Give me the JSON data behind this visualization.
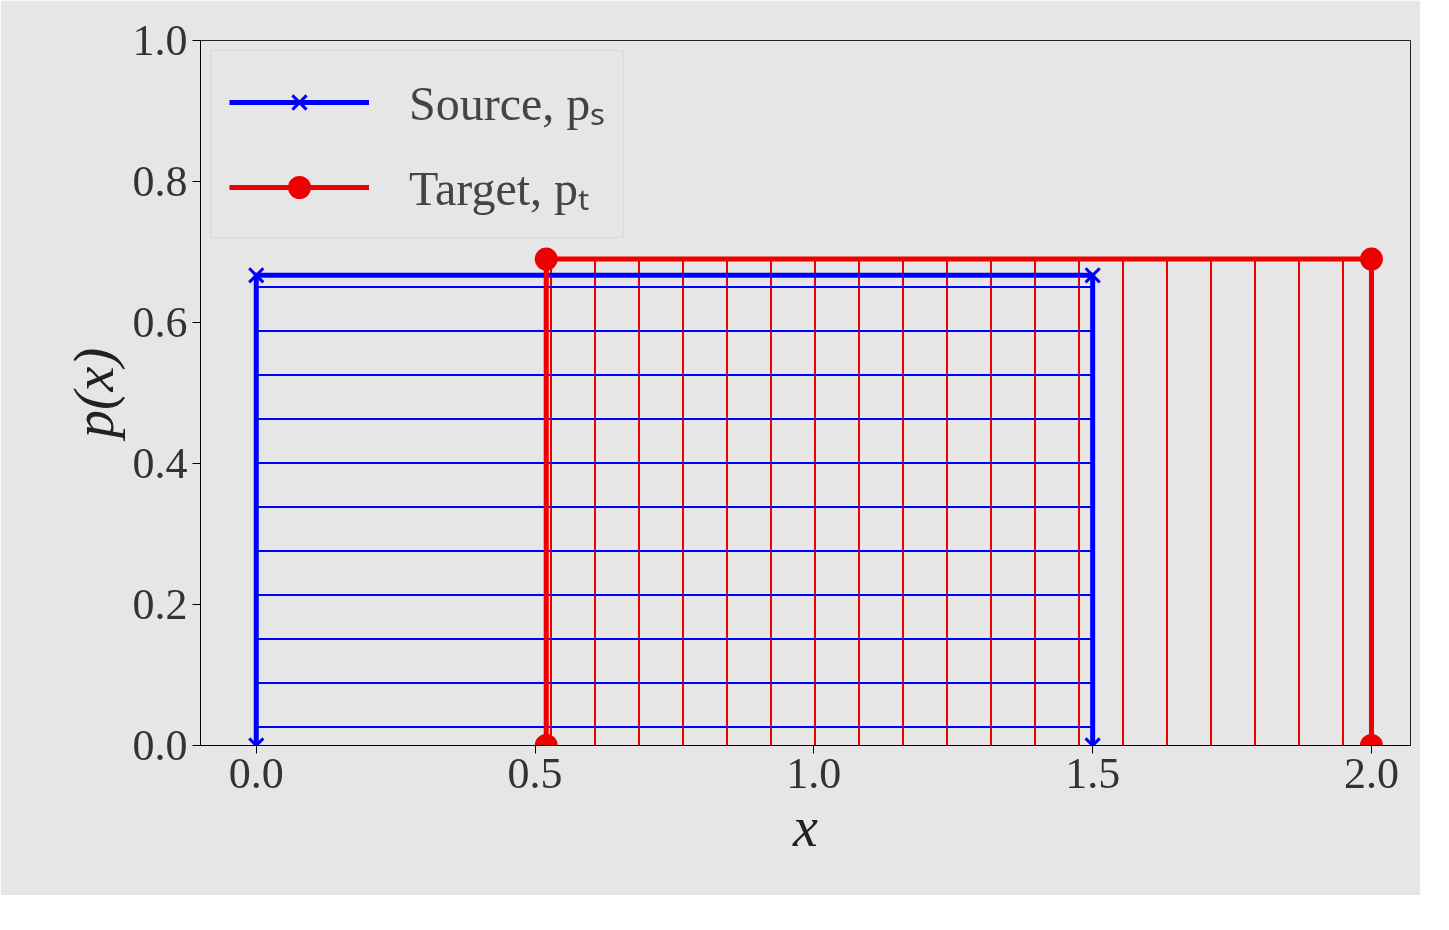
{
  "chart_data": {
    "type": "area",
    "xlabel": "x",
    "ylabel": "p(x)",
    "series": [
      {
        "name": "Source, pₛ",
        "color": "#0000ff",
        "marker": "cross",
        "x": [
          0,
          0,
          1.5,
          1.5
        ],
        "values": [
          0,
          0.667,
          0.667,
          0
        ]
      },
      {
        "name": "Target, pₜ",
        "color": "#ee0000",
        "marker": "circle",
        "x": [
          0.52,
          0.52,
          2.0,
          2.0
        ],
        "values": [
          0,
          0.69,
          0.69,
          0
        ]
      }
    ],
    "xlim": [
      -0.1,
      2.07
    ],
    "ylim": [
      0,
      1.0
    ],
    "xticks": [
      {
        "value": 0,
        "label": "0.0"
      },
      {
        "value": 0.5,
        "label": "0.5"
      },
      {
        "value": 1.0,
        "label": "1.0"
      },
      {
        "value": 1.5,
        "label": "1.5"
      },
      {
        "value": 2.0,
        "label": "2.0"
      }
    ],
    "yticks": [
      {
        "value": 0,
        "label": "0.0"
      },
      0.2,
      0.4,
      0.6,
      0.8,
      {
        "value": 1.0,
        "label": "1.0"
      }
    ],
    "grid": false,
    "legend": "top left"
  }
}
